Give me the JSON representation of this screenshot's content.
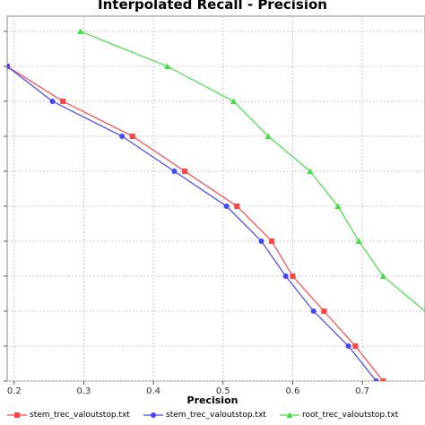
{
  "chart_data": {
    "type": "line",
    "title": "Interpolated Recall - Precision",
    "xlabel": "Precision",
    "ylabel": "",
    "xlim": [
      0.19,
      0.79
    ],
    "ylim": [
      0.0,
      1.0
    ],
    "x_ticks": [
      "0.2",
      "0.3",
      "0.4",
      "0.5",
      "0.6",
      "0.7"
    ],
    "y_ticks_count": 11,
    "grid": true,
    "legend": "bottom",
    "series": [
      {
        "name": "stem_trec_valoutstop.txt",
        "color": "#ff4444",
        "marker": "square",
        "x": [
          0.19,
          0.27,
          0.37,
          0.445,
          0.52,
          0.57,
          0.6,
          0.645,
          0.69,
          0.73,
          0.8
        ],
        "y": [
          0.9,
          0.8,
          0.7,
          0.6,
          0.5,
          0.4,
          0.3,
          0.2,
          0.1,
          0.0,
          -0.12
        ]
      },
      {
        "name": "stem_trec_valoutstop.txt",
        "color": "#4444ff",
        "marker": "circle",
        "x": [
          0.19,
          0.255,
          0.355,
          0.43,
          0.505,
          0.555,
          0.59,
          0.63,
          0.68,
          0.72,
          0.8
        ],
        "y": [
          0.9,
          0.8,
          0.7,
          0.6,
          0.5,
          0.4,
          0.3,
          0.2,
          0.1,
          0.0,
          -0.12
        ]
      },
      {
        "name": "root_trec_valoutstop.txt",
        "color": "#44dd44",
        "marker": "triangle",
        "x": [
          0.295,
          0.42,
          0.515,
          0.565,
          0.625,
          0.665,
          0.695,
          0.73,
          0.79
        ],
        "y": [
          1.0,
          0.9,
          0.8,
          0.7,
          0.6,
          0.5,
          0.4,
          0.3,
          0.2
        ],
        "marker_indices": [
          0,
          1,
          2,
          3,
          4,
          5,
          6,
          7
        ]
      }
    ]
  }
}
